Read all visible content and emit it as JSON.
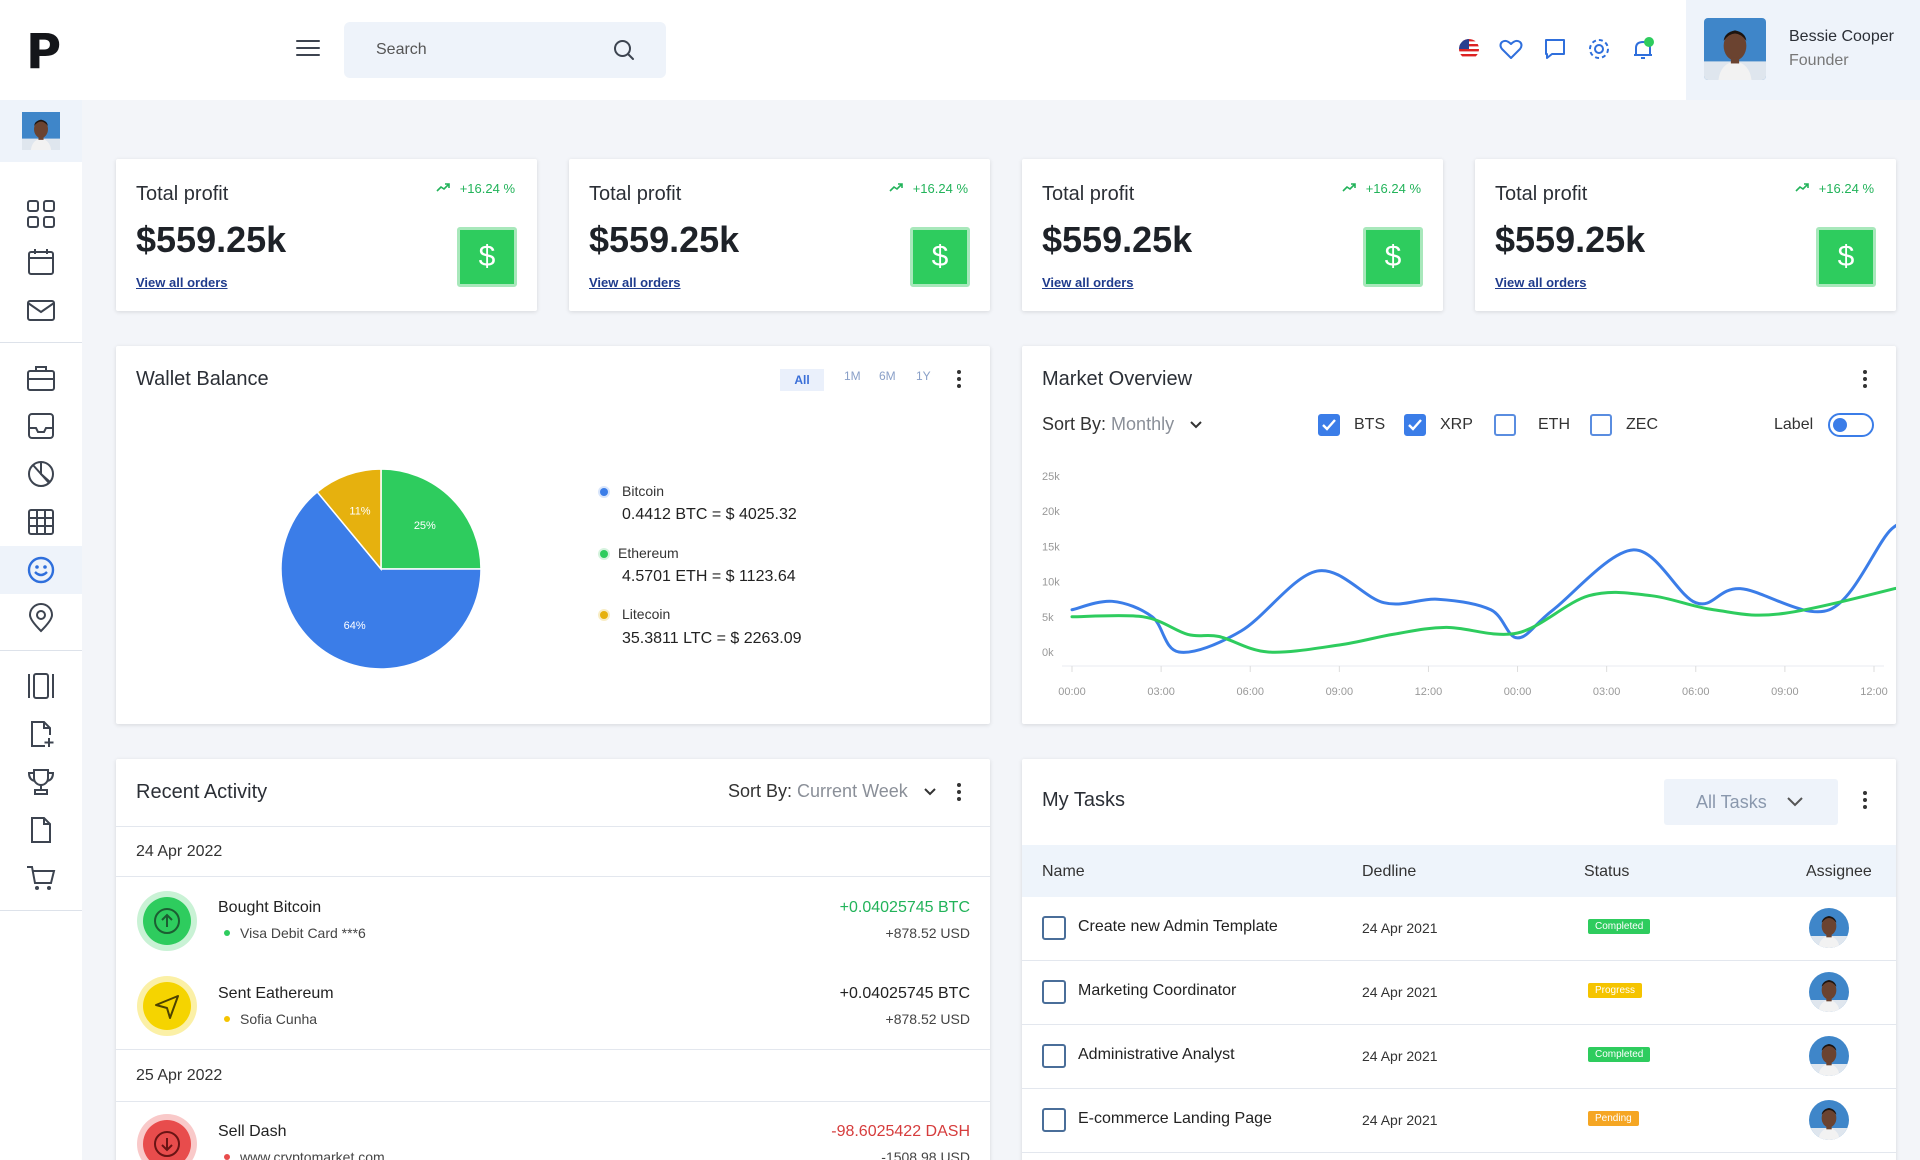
{
  "app": {
    "logo": "P"
  },
  "search": {
    "placeholder": "Search"
  },
  "user": {
    "name": "Bessie Cooper",
    "role": "Founder"
  },
  "profit_cards": [
    {
      "title": "Total profit",
      "change": "+16.24 %",
      "value": "$559.25k",
      "link": "View all orders",
      "icon": "$"
    },
    {
      "title": "Total profit",
      "change": "+16.24 %",
      "value": "$559.25k",
      "link": "View all orders",
      "icon": "$"
    },
    {
      "title": "Total profit",
      "change": "+16.24 %",
      "value": "$559.25k",
      "link": "View all orders",
      "icon": "$"
    },
    {
      "title": "Total profit",
      "change": "+16.24 %",
      "value": "$559.25k",
      "link": "View all orders",
      "icon": "$"
    }
  ],
  "wallet": {
    "title": "Wallet Balance",
    "ranges": [
      "All",
      "1M",
      "6M",
      "1Y"
    ],
    "selected_range": "All",
    "legend": [
      {
        "name": "Bitcoin",
        "value": "0.4412 BTC = $ 4025.32",
        "color": "#3b7de8"
      },
      {
        "name": "Ethereum",
        "value": "4.5701 ETH = $ 1123.64",
        "color": "#2ecc5e"
      },
      {
        "name": "Litecoin",
        "value": "35.3811 LTC = $ 2263.09",
        "color": "#e6b10e"
      }
    ],
    "chart_data": {
      "type": "pie",
      "slices": [
        {
          "label": "25%",
          "value": 25,
          "color": "#2ecc5e"
        },
        {
          "label": "64%",
          "value": 64,
          "color": "#3b7de8"
        },
        {
          "label": "11%",
          "value": 11,
          "color": "#e6b10e"
        }
      ]
    }
  },
  "market": {
    "title": "Market Overview",
    "sort_label": "Sort By:",
    "sort_value": "Monthly",
    "series_toggles": [
      {
        "name": "BTS",
        "checked": true
      },
      {
        "name": "XRP",
        "checked": true
      },
      {
        "name": "ETH",
        "checked": false
      },
      {
        "name": "ZEC",
        "checked": false
      }
    ],
    "label_toggle": "Label",
    "chart_data": {
      "type": "line",
      "x": [
        "00:00",
        "03:00",
        "06:00",
        "09:00",
        "12:00",
        "00:00",
        "03:00",
        "06:00",
        "09:00",
        "12:00"
      ],
      "yticks": [
        "0k",
        "5k",
        "10k",
        "15k",
        "20k",
        "25k"
      ],
      "ylim": [
        0,
        25000
      ],
      "series": [
        {
          "color": "#3b7de8",
          "values": [
            [
              0,
              6000
            ],
            [
              0.45,
              7200
            ],
            [
              0.9,
              5000
            ],
            [
              1.2,
              0
            ],
            [
              1.9,
              3000
            ],
            [
              2.75,
              11500
            ],
            [
              3.5,
              7000
            ],
            [
              4.1,
              7500
            ],
            [
              4.7,
              6000
            ],
            [
              5,
              2000
            ],
            [
              5.4,
              6000
            ],
            [
              6.3,
              14500
            ],
            [
              7,
              7000
            ],
            [
              7.5,
              9000
            ],
            [
              8.5,
              6000
            ],
            [
              9.2,
              17500
            ],
            [
              9.55,
              18000
            ]
          ]
        },
        {
          "color": "#2ecc5e",
          "values": [
            [
              0,
              5000
            ],
            [
              0.8,
              5000
            ],
            [
              1.3,
              2500
            ],
            [
              1.65,
              2200
            ],
            [
              2.2,
              0
            ],
            [
              3,
              1000
            ],
            [
              3.6,
              2500
            ],
            [
              4.2,
              3500
            ],
            [
              5,
              2700
            ],
            [
              5.8,
              8000
            ],
            [
              6.5,
              8000
            ],
            [
              7.2,
              6000
            ],
            [
              8,
              5500
            ],
            [
              9.55,
              10000
            ]
          ]
        }
      ]
    }
  },
  "activity": {
    "title": "Recent Activity",
    "sort_label": "Sort By:",
    "sort_value": "Current Week",
    "groups": [
      {
        "date": "24 Apr 2022",
        "items": [
          {
            "title": "Bought Bitcoin",
            "sub": "Visa Debit Card ***6",
            "amount": "+0.04025745 BTC",
            "usd": "+878.52 USD",
            "icon": "arrow-up-icon",
            "color": "#2ecc5e",
            "amount_color": "#22b35a"
          },
          {
            "title": "Sent Eathereum",
            "sub": "Sofia Cunha",
            "amount": "+0.04025745 BTC",
            "usd": "+878.52 USD",
            "icon": "send-icon",
            "color": "#f5d400",
            "amount_color": "#222222"
          }
        ]
      },
      {
        "date": "25 Apr 2022",
        "items": [
          {
            "title": "Sell Dash",
            "sub": "www.cryptomarket.com",
            "amount": "-98.6025422 DASH",
            "usd": "-1508.98 USD",
            "icon": "arrow-down-icon",
            "color": "#e84c4c",
            "amount_color": "#d63c3c"
          }
        ]
      }
    ]
  },
  "tasks": {
    "title": "My Tasks",
    "filter": "All Tasks",
    "columns": [
      "Name",
      "Dedline",
      "Status",
      "Assignee"
    ],
    "rows": [
      {
        "name": "Create new Admin Template",
        "date": "24 Apr 2021",
        "status": "Completed",
        "color": "#2ecc5e"
      },
      {
        "name": "Marketing Coordinator",
        "date": "24 Apr 2021",
        "status": "Progress",
        "color": "#f5c400"
      },
      {
        "name": "Administrative Analyst",
        "date": "24 Apr 2021",
        "status": "Completed",
        "color": "#2ecc5e"
      },
      {
        "name": "E-commerce Landing Page",
        "date": "24 Apr 2021",
        "status": "Pending",
        "color": "#f5a623"
      }
    ]
  }
}
